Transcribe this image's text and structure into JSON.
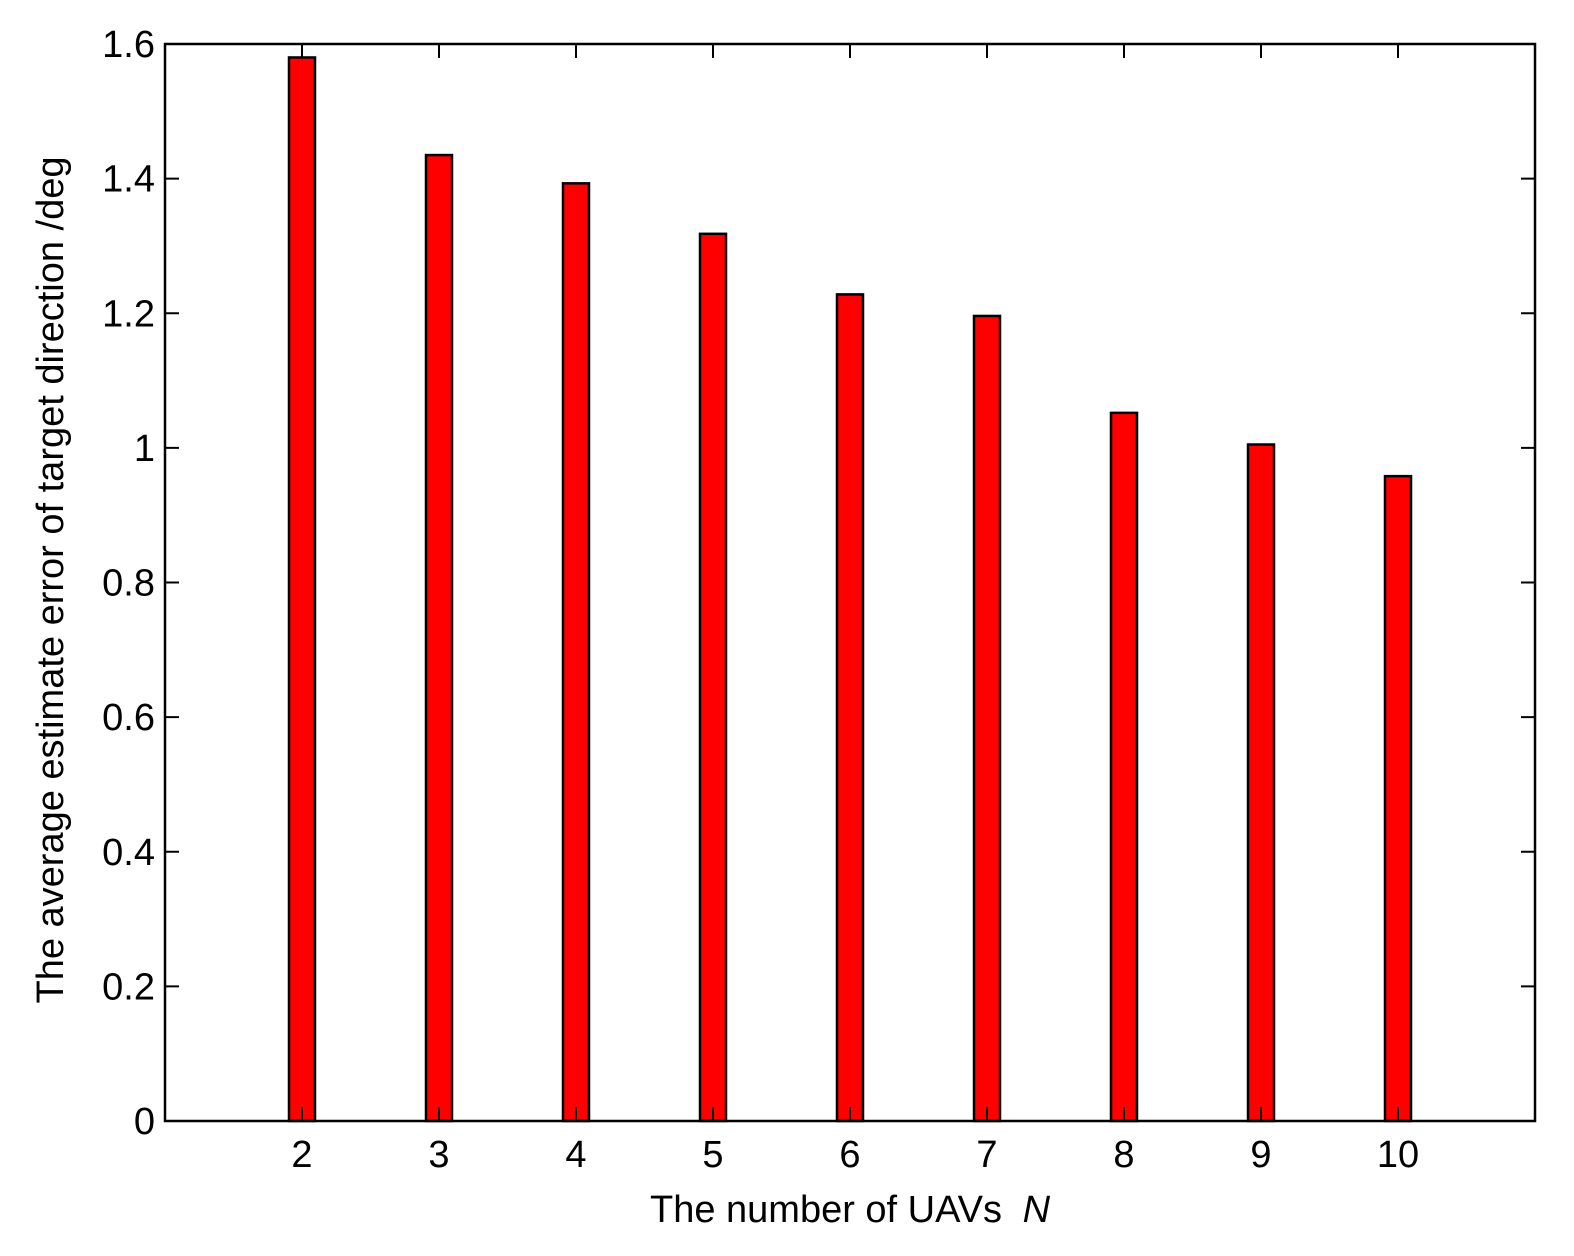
{
  "chart_data": {
    "type": "bar",
    "categories": [
      "2",
      "3",
      "4",
      "5",
      "6",
      "7",
      "8",
      "9",
      "10"
    ],
    "values": [
      1.58,
      1.435,
      1.393,
      1.318,
      1.228,
      1.196,
      1.052,
      1.005,
      0.958
    ],
    "xlabel": "The number of UAVs",
    "xlabel_var": "N",
    "ylabel": "The average estimate error of target direction /deg",
    "ylim": [
      0,
      1.6
    ],
    "yticks": [
      "0",
      "0.2",
      "0.4",
      "0.6",
      "0.8",
      "1",
      "1.2",
      "1.4",
      "1.6"
    ],
    "grid": false,
    "legend": "none",
    "colors": {
      "bar_fill": "#ff0000",
      "bar_stroke": "#000000",
      "axes": "#000000",
      "background": "#ffffff"
    }
  }
}
